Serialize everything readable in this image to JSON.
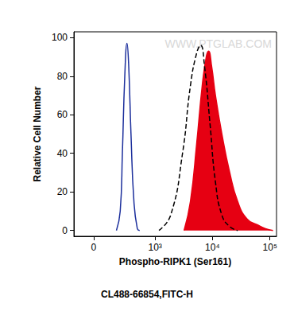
{
  "chart_data": {
    "type": "area",
    "xlabel": "Phospho-RIPK1 (Ser161)",
    "subtitle": "CL488-66854,FITC-H",
    "ylabel": "Relative Cell Number",
    "annotations": [
      "WWW.PTGLAB.COM"
    ],
    "xlim": [
      -150,
      130000
    ],
    "xticks": [
      0,
      {
        "value": 1000,
        "label": "10³"
      },
      {
        "value": 10000,
        "label": "10⁴"
      },
      {
        "value": 100000,
        "label": "10⁵"
      }
    ],
    "ylim": [
      -3,
      103
    ],
    "yticks": [
      0,
      20,
      40,
      60,
      80,
      100
    ],
    "grid": false,
    "series": [
      {
        "type": "line",
        "color": "#1c2f9c",
        "line_style": "solid",
        "x": [
          180,
          220,
          245,
          275,
          305,
          330,
          365,
          415,
          480,
          530
        ],
        "values": [
          0,
          10,
          40,
          80,
          97,
          85,
          50,
          15,
          1,
          0
        ]
      },
      {
        "type": "line",
        "color": "#000000",
        "line_style": "dashed",
        "x": [
          1170,
          1880,
          3020,
          4140,
          5320,
          6220,
          7300,
          9100,
          11300,
          14600,
          20000,
          27500
        ],
        "values": [
          0,
          8,
          40,
          75,
          92,
          96,
          85,
          55,
          25,
          8,
          2,
          0
        ]
      },
      {
        "type": "area",
        "color": "#e60012",
        "line_style": "solid",
        "x": [
          3210,
          4140,
          5320,
          6640,
          7800,
          8560,
          9700,
          11300,
          14600,
          20000,
          27500,
          40000,
          60000,
          82000,
          113000
        ],
        "values": [
          0,
          15,
          45,
          75,
          90,
          93,
          85,
          70,
          50,
          30,
          15,
          6,
          3,
          1,
          0
        ]
      }
    ]
  }
}
